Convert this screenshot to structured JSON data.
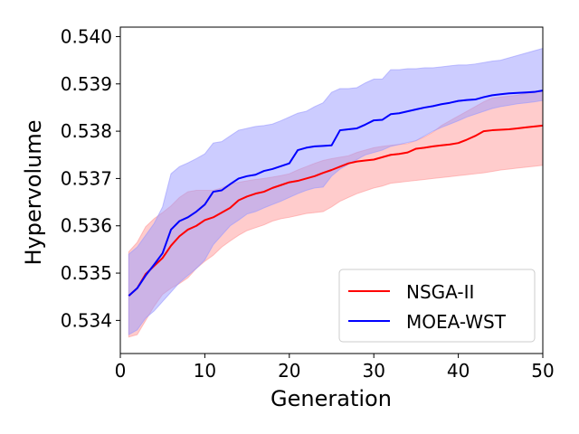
{
  "chart_data": {
    "type": "line",
    "title": "",
    "xlabel": "Generation",
    "ylabel": "Hypervolume",
    "xlim": [
      0,
      50
    ],
    "ylim": [
      0.5333,
      0.5402
    ],
    "xticks": [
      0,
      10,
      20,
      30,
      40,
      50
    ],
    "xtick_labels": [
      "0",
      "10",
      "20",
      "30",
      "40",
      "50"
    ],
    "yticks": [
      0.534,
      0.535,
      0.536,
      0.537,
      0.538,
      0.539,
      0.54
    ],
    "ytick_labels": [
      "0.534",
      "0.535",
      "0.536",
      "0.537",
      "0.538",
      "0.539",
      "0.540"
    ],
    "legend": {
      "position": "bottom-right",
      "entries": [
        "NSGA-II",
        "MOEA-WST"
      ]
    },
    "x": [
      1,
      2,
      3,
      4,
      5,
      6,
      7,
      8,
      9,
      10,
      11,
      12,
      13,
      14,
      15,
      16,
      17,
      18,
      19,
      20,
      21,
      22,
      23,
      24,
      25,
      26,
      27,
      28,
      29,
      30,
      31,
      32,
      33,
      34,
      35,
      36,
      37,
      38,
      39,
      40,
      41,
      42,
      43,
      44,
      45,
      46,
      47,
      48,
      49,
      50
    ],
    "series": [
      {
        "name": "NSGA-II",
        "color": "#ff0000",
        "band_color": "#ff9999",
        "values": [
          0.53452,
          0.53468,
          0.53498,
          0.53515,
          0.53532,
          0.53558,
          0.53578,
          0.53592,
          0.536,
          0.53612,
          0.53618,
          0.53628,
          0.53638,
          0.53654,
          0.53662,
          0.53668,
          0.53672,
          0.5368,
          0.53686,
          0.53692,
          0.53695,
          0.537,
          0.53705,
          0.53712,
          0.53718,
          0.53725,
          0.53732,
          0.53736,
          0.53738,
          0.5374,
          0.53745,
          0.5375,
          0.53752,
          0.53755,
          0.53763,
          0.53765,
          0.53768,
          0.5377,
          0.53772,
          0.53775,
          0.53782,
          0.5379,
          0.538,
          0.53802,
          0.53803,
          0.53804,
          0.53806,
          0.53808,
          0.5381,
          0.53812
        ],
        "lower": [
          0.53365,
          0.5337,
          0.534,
          0.5343,
          0.53455,
          0.53468,
          0.53478,
          0.5349,
          0.5351,
          0.53525,
          0.53538,
          0.53555,
          0.53568,
          0.5358,
          0.5359,
          0.53596,
          0.53602,
          0.5361,
          0.53615,
          0.53618,
          0.53622,
          0.53626,
          0.53628,
          0.5363,
          0.5364,
          0.53652,
          0.5366,
          0.53668,
          0.53674,
          0.5368,
          0.53684,
          0.5369,
          0.53692,
          0.53694,
          0.53696,
          0.53698,
          0.537,
          0.53702,
          0.53704,
          0.53706,
          0.53708,
          0.5371,
          0.53712,
          0.53715,
          0.53718,
          0.5372,
          0.53722,
          0.53724,
          0.53726,
          0.53728
        ],
        "upper": [
          0.53545,
          0.53565,
          0.53598,
          0.53615,
          0.53628,
          0.53642,
          0.5366,
          0.53672,
          0.53675,
          0.53675,
          0.53675,
          0.5368,
          0.53688,
          0.53692,
          0.53695,
          0.53698,
          0.537,
          0.53703,
          0.53706,
          0.5371,
          0.53718,
          0.53725,
          0.53732,
          0.53738,
          0.53742,
          0.53745,
          0.53748,
          0.53755,
          0.5376,
          0.53765,
          0.53768,
          0.5377,
          0.53772,
          0.53774,
          0.5378,
          0.53788,
          0.53798,
          0.53812,
          0.53822,
          0.53832,
          0.53842,
          0.53852,
          0.53862,
          0.5387,
          0.53872,
          0.53874,
          0.53876,
          0.5388,
          0.53882,
          0.53885
        ]
      },
      {
        "name": "MOEA-WST",
        "color": "#0000ff",
        "band_color": "#9999ff",
        "values": [
          0.53452,
          0.53468,
          0.53495,
          0.53518,
          0.53542,
          0.53592,
          0.5361,
          0.53618,
          0.5363,
          0.53645,
          0.53672,
          0.53675,
          0.53688,
          0.537,
          0.53705,
          0.53708,
          0.53716,
          0.5372,
          0.53726,
          0.53732,
          0.5376,
          0.53765,
          0.53768,
          0.53769,
          0.5377,
          0.53802,
          0.53804,
          0.53806,
          0.53814,
          0.53823,
          0.53824,
          0.53836,
          0.53838,
          0.53842,
          0.53846,
          0.5385,
          0.53853,
          0.53857,
          0.5386,
          0.53864,
          0.53866,
          0.53867,
          0.53872,
          0.53876,
          0.53878,
          0.5388,
          0.53881,
          0.53882,
          0.53883,
          0.53886
        ],
        "lower": [
          0.5337,
          0.5338,
          0.53405,
          0.5342,
          0.5344,
          0.5346,
          0.5348,
          0.53495,
          0.5351,
          0.53528,
          0.5356,
          0.5358,
          0.536,
          0.53612,
          0.53625,
          0.5363,
          0.53638,
          0.53645,
          0.53652,
          0.5366,
          0.53668,
          0.53675,
          0.5368,
          0.53682,
          0.53705,
          0.5372,
          0.5373,
          0.5374,
          0.5375,
          0.53755,
          0.5376,
          0.53768,
          0.53772,
          0.53776,
          0.5378,
          0.5379,
          0.538,
          0.53808,
          0.53815,
          0.53822,
          0.5383,
          0.53836,
          0.53842,
          0.53848,
          0.53852,
          0.53855,
          0.53858,
          0.5386,
          0.53862,
          0.53865
        ],
        "upper": [
          0.5354,
          0.53555,
          0.5358,
          0.53605,
          0.5364,
          0.5371,
          0.53725,
          0.53733,
          0.53742,
          0.53752,
          0.53775,
          0.53778,
          0.5379,
          0.53802,
          0.53806,
          0.5381,
          0.53812,
          0.53815,
          0.53822,
          0.5383,
          0.53838,
          0.53842,
          0.53852,
          0.5386,
          0.53882,
          0.5389,
          0.5389,
          0.53892,
          0.53902,
          0.5391,
          0.5391,
          0.5393,
          0.5393,
          0.53932,
          0.53932,
          0.53934,
          0.53934,
          0.53936,
          0.53938,
          0.5394,
          0.5394,
          0.53942,
          0.53945,
          0.53948,
          0.5395,
          0.53955,
          0.5396,
          0.53965,
          0.5397,
          0.53975
        ]
      }
    ]
  }
}
